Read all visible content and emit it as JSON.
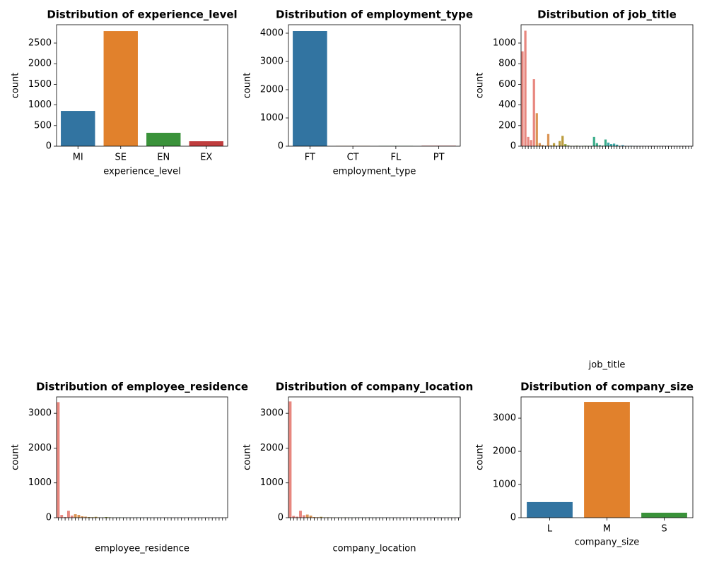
{
  "chart_data": [
    {
      "type": "bar",
      "title": "Distribution of experience_level",
      "xlabel": "experience_level",
      "ylabel": "count",
      "categories": [
        "MI",
        "SE",
        "EN",
        "EX"
      ],
      "values": [
        855,
        2790,
        325,
        120
      ],
      "colors": [
        "#3274a1",
        "#e1812c",
        "#3a923a",
        "#c03d3e"
      ],
      "ylim": [
        0,
        2945
      ],
      "yticks": [
        0,
        500,
        1000,
        1500,
        2000,
        2500
      ]
    },
    {
      "type": "bar",
      "title": "Distribution of employment_type",
      "xlabel": "employment_type",
      "ylabel": "count",
      "categories": [
        "FT",
        "CT",
        "FL",
        "PT"
      ],
      "values": [
        4075,
        10,
        10,
        17
      ],
      "colors": [
        "#3274a1",
        "#e1812c",
        "#3a923a",
        "#c03d3e"
      ],
      "ylim": [
        0,
        4300
      ],
      "yticks": [
        0,
        1000,
        2000,
        3000,
        4000
      ]
    },
    {
      "type": "bar",
      "title": "Distribution of job_title",
      "xlabel": "job_title",
      "ylabel": "count",
      "categories": [
        null,
        null,
        null,
        null,
        null,
        null,
        null,
        null,
        null,
        null,
        null,
        null,
        null,
        null,
        null,
        null,
        null,
        null,
        null,
        null,
        null,
        null,
        null,
        null,
        null,
        null,
        null,
        null,
        null,
        null,
        null,
        null,
        null,
        null,
        null,
        null,
        null,
        null,
        null,
        null,
        null,
        null,
        null,
        null,
        null,
        null,
        null,
        null,
        null,
        null,
        null,
        null,
        null,
        null,
        null,
        null,
        null,
        null,
        null,
        null
      ],
      "values": [
        920,
        1120,
        90,
        60,
        650,
        320,
        30,
        12,
        5,
        118,
        8,
        30,
        4,
        50,
        100,
        20,
        8,
        3,
        2,
        5,
        1,
        2,
        4,
        3,
        1,
        90,
        30,
        10,
        5,
        65,
        35,
        20,
        25,
        15,
        3,
        10,
        2,
        1,
        4,
        2,
        3,
        1,
        2,
        1,
        1,
        3,
        2,
        1,
        1,
        2,
        1,
        1,
        1,
        2,
        1,
        1,
        1,
        1,
        1,
        1
      ],
      "colors": [
        "#e8877f",
        "#db9454",
        "#bb9c3d",
        "#94a73a",
        "#52b143",
        "#3cae8b",
        "#3aa9a6",
        "#3fa3c4",
        "#7b97e0",
        "#b388e0",
        "#d97fc6",
        "#e583a5"
      ],
      "ylim": [
        0,
        1178
      ],
      "yticks": [
        0,
        200,
        400,
        600,
        800,
        1000
      ]
    },
    {
      "type": "bar",
      "title": "Distribution of employee_residence",
      "xlabel": "employee_residence",
      "ylabel": "count",
      "categories": [
        null,
        null,
        null,
        null,
        null,
        null,
        null,
        null,
        null,
        null,
        null,
        null,
        null,
        null,
        null,
        null,
        null,
        null,
        null,
        null,
        null,
        null,
        null,
        null,
        null,
        null,
        null,
        null,
        null,
        null,
        null,
        null,
        null,
        null,
        null,
        null,
        null,
        null,
        null,
        null,
        null,
        null,
        null,
        null,
        null,
        null,
        null,
        null,
        null,
        null
      ],
      "values": [
        3320,
        80,
        20,
        200,
        60,
        100,
        80,
        40,
        30,
        20,
        15,
        25,
        10,
        8,
        20,
        12,
        5,
        6,
        10,
        4,
        3,
        5,
        2,
        8,
        3,
        4,
        2,
        1,
        3,
        2,
        1,
        2,
        1,
        1,
        3,
        1,
        2,
        1,
        1,
        1,
        2,
        1,
        1,
        1,
        1,
        1,
        2,
        1,
        1,
        1
      ],
      "colors": [
        "#e8877f",
        "#db9454",
        "#bb9c3d",
        "#94a73a",
        "#52b143",
        "#3cae8b",
        "#3aa9a6",
        "#3fa3c4",
        "#7b97e0",
        "#b388e0",
        "#d97fc6",
        "#e583a5"
      ],
      "ylim": [
        0,
        3470
      ],
      "yticks": [
        0,
        1000,
        2000,
        3000
      ]
    },
    {
      "type": "bar",
      "title": "Distribution of company_location",
      "xlabel": "company_location",
      "ylabel": "count",
      "categories": [
        null,
        null,
        null,
        null,
        null,
        null,
        null,
        null,
        null,
        null,
        null,
        null,
        null,
        null,
        null,
        null,
        null,
        null,
        null,
        null,
        null,
        null,
        null,
        null,
        null,
        null,
        null,
        null,
        null,
        null,
        null,
        null,
        null,
        null,
        null,
        null,
        null,
        null,
        null,
        null,
        null,
        null,
        null,
        null,
        null,
        null,
        null,
        null,
        null,
        null
      ],
      "values": [
        3340,
        50,
        30,
        200,
        70,
        90,
        60,
        20,
        15,
        25,
        10,
        12,
        8,
        6,
        5,
        4,
        10,
        3,
        2,
        5,
        3,
        5,
        2,
        8,
        3,
        4,
        2,
        1,
        3,
        2,
        1,
        2,
        1,
        1,
        3,
        1,
        2,
        1,
        1,
        1,
        2,
        1,
        1,
        1,
        1,
        1,
        2,
        1,
        1,
        1
      ],
      "colors": [
        "#e8877f",
        "#db9454",
        "#bb9c3d",
        "#94a73a",
        "#52b143",
        "#3cae8b",
        "#3aa9a6",
        "#3fa3c4",
        "#7b97e0",
        "#b388e0",
        "#d97fc6",
        "#e583a5"
      ],
      "ylim": [
        0,
        3470
      ],
      "yticks": [
        0,
        1000,
        2000,
        3000
      ]
    },
    {
      "type": "bar",
      "title": "Distribution of company_size",
      "xlabel": "company_size",
      "ylabel": "count",
      "categories": [
        "L",
        "M",
        "S"
      ],
      "values": [
        470,
        3490,
        150
      ],
      "colors": [
        "#3274a1",
        "#e1812c",
        "#3a923a"
      ],
      "ylim": [
        0,
        3640
      ],
      "yticks": [
        0,
        1000,
        2000,
        3000
      ]
    }
  ]
}
